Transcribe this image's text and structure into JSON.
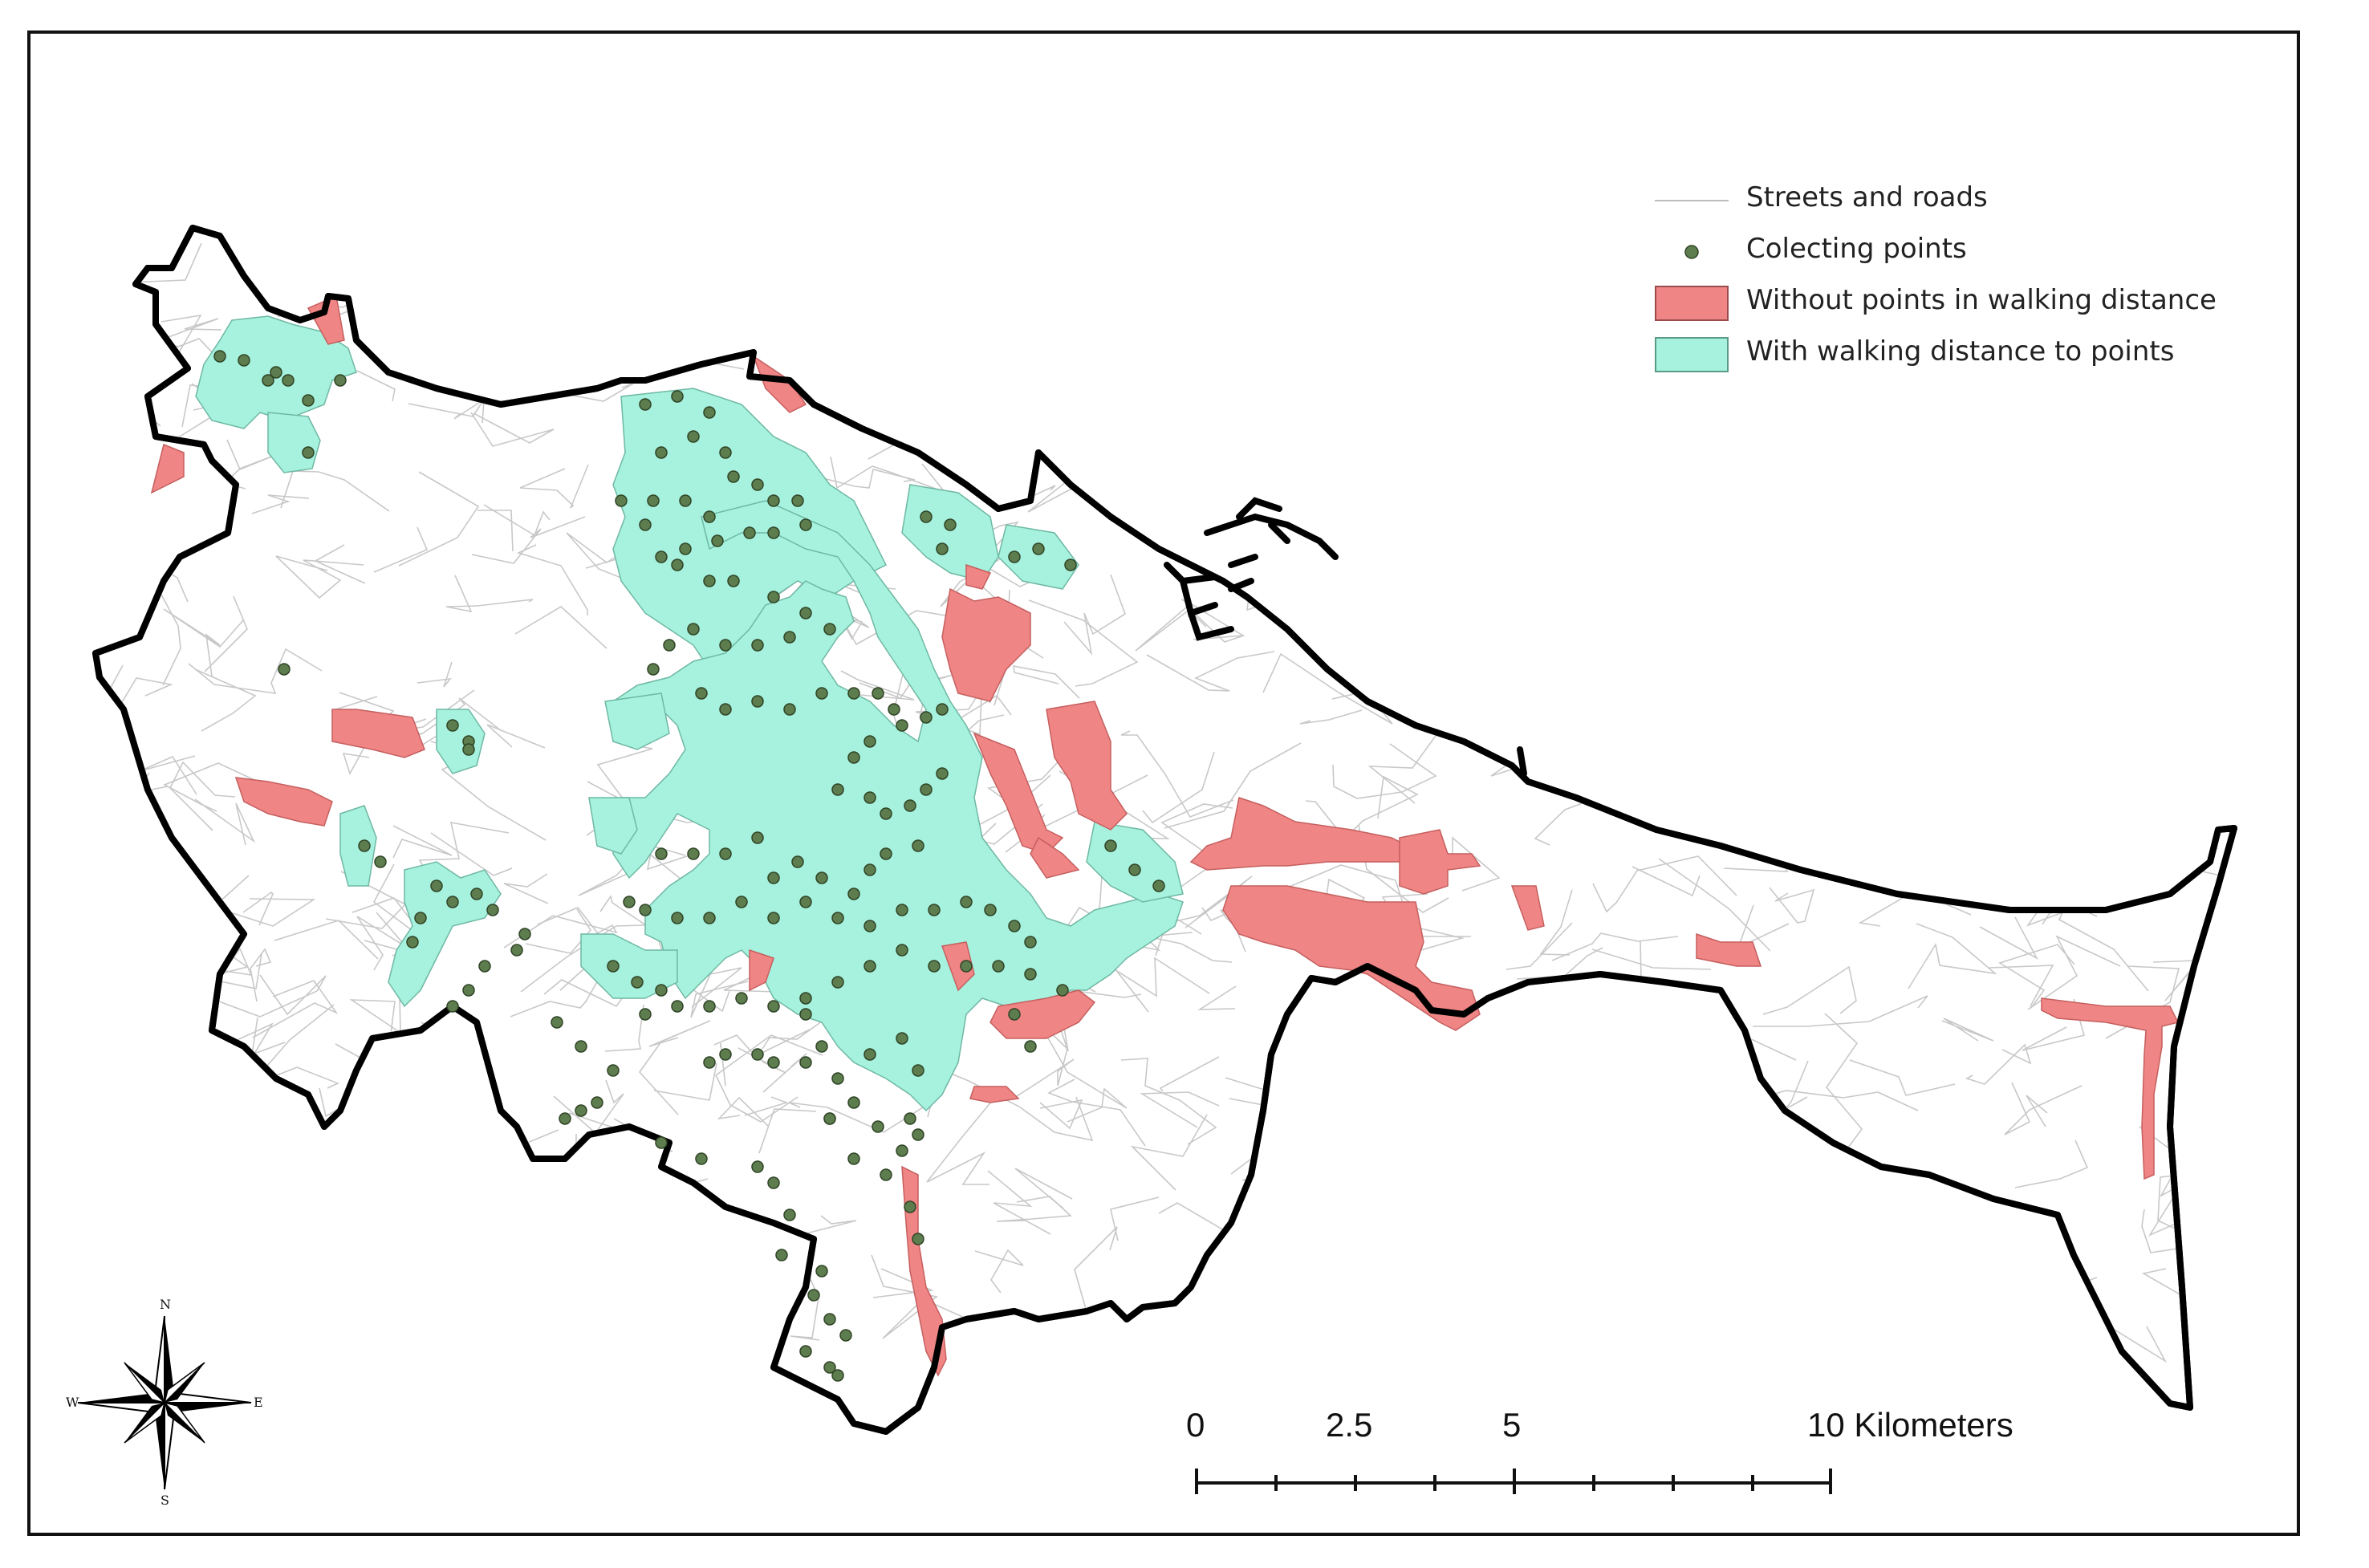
{
  "legend": {
    "items": [
      {
        "label": "Streets and roads",
        "symbol": "line",
        "color": "#bdbdbd"
      },
      {
        "label": "Colecting points",
        "symbol": "point",
        "color": "#5e7d4e"
      },
      {
        "label": "Without points in walking distance",
        "symbol": "patch",
        "color": "#f08585"
      },
      {
        "label": "With walking distance to points",
        "symbol": "patch",
        "color": "#a6f2de"
      }
    ]
  },
  "scale_bar": {
    "labels": [
      "0",
      "2.5",
      "5",
      "10 Kilometers"
    ]
  },
  "compass": {
    "n": "N",
    "s": "S",
    "e": "E",
    "w": "W",
    "icon": "north-arrow-compass-rose"
  },
  "colors": {
    "boundary": "#000000",
    "covered": "#a6f2de",
    "uncovered": "#f08585",
    "points": "#5e7d4e",
    "roads": "#c8c8c8"
  }
}
